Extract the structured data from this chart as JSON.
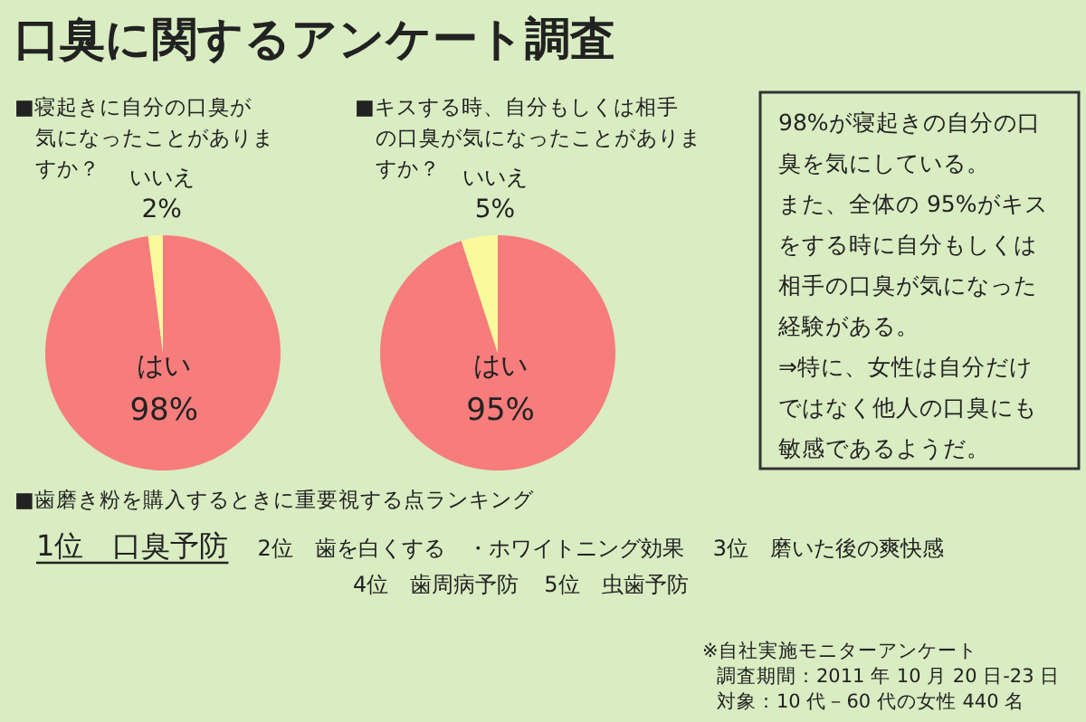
{
  "chart_data": [
    {
      "type": "pie",
      "title": "口臭に関するアンケート調査",
      "subtitle": "■寝起きに自分の口臭が気になったことがありますか？",
      "categories": [
        "はい",
        "いいえ"
      ],
      "values": [
        98,
        2
      ],
      "value_labels": [
        "98%",
        "2%"
      ],
      "colors": [
        "#f77c7c",
        "#fafa9c"
      ]
    },
    {
      "type": "pie",
      "subtitle": "■キスする時、自分もしくは相手の口臭が気になったことがありますか？",
      "categories": [
        "はい",
        "いいえ"
      ],
      "values": [
        95,
        5
      ],
      "value_labels": [
        "95%",
        "5%"
      ],
      "colors": [
        "#f77c7c",
        "#fafa9c"
      ]
    },
    {
      "type": "other",
      "annotations": [
        "98%が寝起きの自分の口",
        "臭を気にしている。",
        "また、全体の 95%がキス",
        "をする時に自分もしくは",
        "相手の口臭が気になった",
        "経験がある。",
        "⇒特に、女性は自分だけ",
        "ではなく他人の口臭にも",
        "敏感であるようだ。"
      ]
    },
    {
      "type": "other",
      "title": "■歯磨き粉を購入するときに重要視する点ランキング",
      "annotations": [
        "1位　口臭予防",
        "2位　歯を白くする　・ホワイトニング効果",
        "3位　磨いた後の爽快感",
        "4位　歯周病予防",
        "5位　虫歯予防",
        "※自社実施モニターアンケート",
        "調査期間：2011 年 10 月 20 日-23 日",
        "対象：10 代－60 代の女性 440 名"
      ]
    }
  ]
}
